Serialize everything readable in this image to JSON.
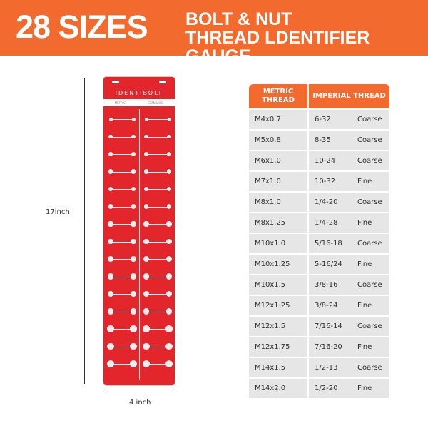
{
  "banner": {
    "headline": "28 SIZES",
    "subtitle_line1": "BOLT & NUT",
    "subtitle_line2": "THREAD LDENTIFIER GAUGE"
  },
  "gauge": {
    "brand": "IDENTIBOLT",
    "left_label": "METRIC",
    "right_label": "STANDARD"
  },
  "dimensions": {
    "height": "17inch",
    "width": "4 inch"
  },
  "table": {
    "headers": [
      "METRIC THREAD",
      "IMPERIAL THREAD"
    ],
    "rows": [
      {
        "metric": "M4x0.7",
        "imperial": "6-32",
        "type": "Coarse"
      },
      {
        "metric": "M5x0.8",
        "imperial": "8-35",
        "type": "Coarse"
      },
      {
        "metric": "M6x1.0",
        "imperial": "10-24",
        "type": "Coarse"
      },
      {
        "metric": "M7x1.0",
        "imperial": "10-32",
        "type": "Fine"
      },
      {
        "metric": "M8x1.0",
        "imperial": "1/4-20",
        "type": "Coarse"
      },
      {
        "metric": "M8x1.25",
        "imperial": "1/4-28",
        "type": "Fine"
      },
      {
        "metric": "M10x1.0",
        "imperial": "5/16-18",
        "type": "Coarse"
      },
      {
        "metric": "M10x1.25",
        "imperial": "5-16/24",
        "type": "Fine"
      },
      {
        "metric": "M10x1.5",
        "imperial": "3/8-16",
        "type": "Coarse"
      },
      {
        "metric": "M12x1.25",
        "imperial": "3/8-24",
        "type": "Fine"
      },
      {
        "metric": "M12x1.5",
        "imperial": "7/16-14",
        "type": "Coarse"
      },
      {
        "metric": "M12x1.75",
        "imperial": "7/16-20",
        "type": "Fine"
      },
      {
        "metric": "M14x1.5",
        "imperial": "1/2-13",
        "type": "Coarse"
      },
      {
        "metric": "M14x2.0",
        "imperial": "1/2-20",
        "type": "Fine"
      }
    ]
  }
}
